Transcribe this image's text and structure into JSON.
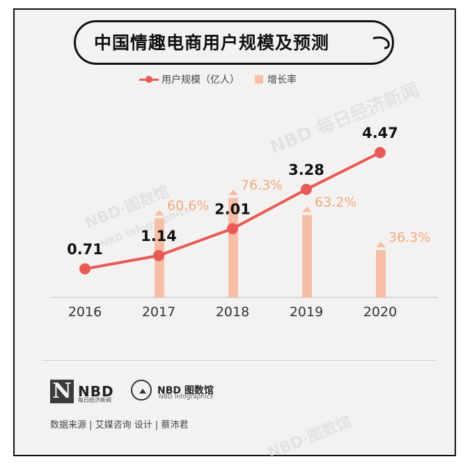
{
  "title": "中国情趣电商用户规模及预测",
  "legend": {
    "line_label": "用户规模（亿人）",
    "bar_label": "增长率"
  },
  "colors": {
    "line": "#e85a55",
    "bar": "#f7bea6",
    "bar_label": "#f0a880",
    "value_label": "#111111"
  },
  "chart_data": {
    "type": "bar+line",
    "title": "中国情趣电商用户规模及预测",
    "categories": [
      "2016",
      "2017",
      "2018",
      "2019",
      "2020"
    ],
    "series": [
      {
        "name": "用户规模（亿人）",
        "kind": "line",
        "values": [
          0.71,
          1.14,
          2.01,
          3.28,
          4.47
        ],
        "labels": [
          "0.71",
          "1.14",
          "2.01",
          "3.28",
          "4.47"
        ]
      },
      {
        "name": "增长率",
        "kind": "bar",
        "values": [
          null,
          60.6,
          76.3,
          63.2,
          36.3
        ],
        "labels": [
          "",
          "60.6%",
          "76.3%",
          "63.2%",
          "36.3%"
        ]
      }
    ],
    "xlabel": "",
    "ylabel": ""
  },
  "footer": {
    "nbd_logo": "NBD",
    "nbd_sub": "每日经济新闻",
    "graphics_logo": "NBD 图数馆",
    "graphics_sub": "NBD Infographics",
    "credits": "数据来源 | 艾媒咨询  设计 | 蔡沛君"
  },
  "watermarks": [
    "NBD·图数馆",
    "NBD Infographics",
    "NBD·图数馆",
    "NBD 每日经济新闻"
  ]
}
